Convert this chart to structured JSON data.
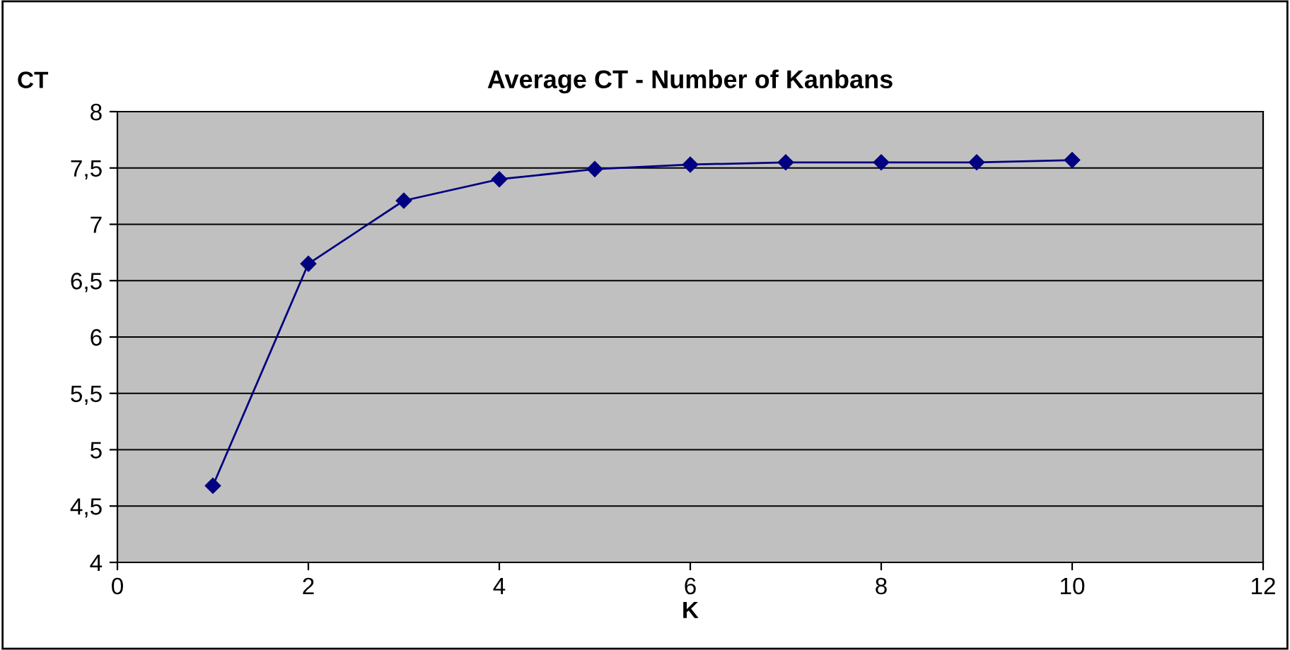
{
  "chart_data": {
    "type": "line",
    "title": "Average CT - Number of Kanbans",
    "xlabel": "K",
    "ylabel": "CT",
    "x": [
      1,
      2,
      3,
      4,
      5,
      6,
      7,
      8,
      9,
      10
    ],
    "series": [
      {
        "color": "#000080",
        "values": [
          4.68,
          6.65,
          7.21,
          7.4,
          7.49,
          7.53,
          7.55,
          7.55,
          7.55,
          7.57
        ]
      }
    ],
    "xlim": [
      0,
      12
    ],
    "xticks": [
      0,
      2,
      4,
      6,
      8,
      10,
      12
    ],
    "ylim": [
      4,
      8
    ],
    "yticks": [
      4,
      {
        "value": 4.5,
        "label": "4,5"
      },
      5,
      {
        "value": 5.5,
        "label": "5,5"
      },
      6,
      {
        "value": 6.5,
        "label": "6,5"
      },
      7,
      {
        "value": 7.5,
        "label": "7,5"
      },
      8
    ],
    "grid": "y",
    "legend": false,
    "marker": "diamond",
    "line_style": "solid"
  }
}
